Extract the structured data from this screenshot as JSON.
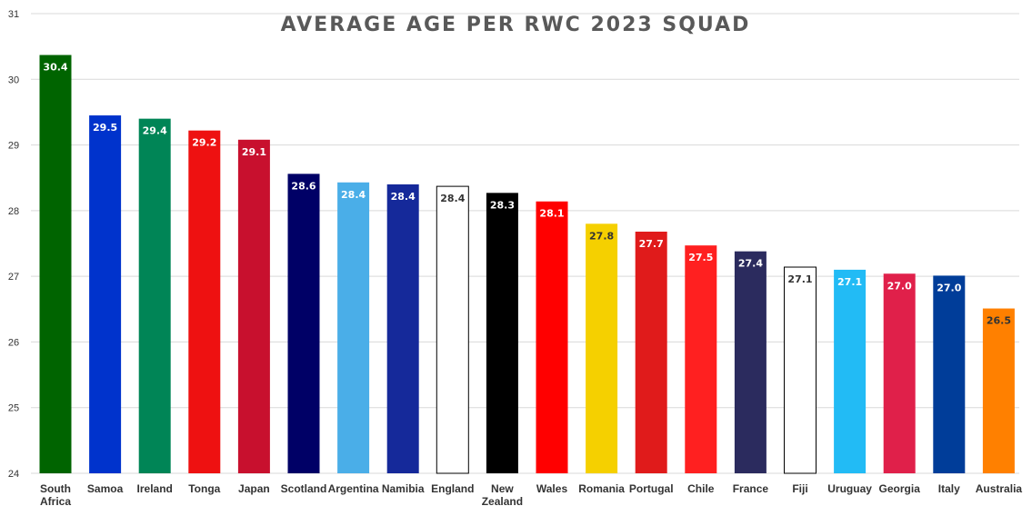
{
  "chart_data": {
    "type": "bar",
    "title": "AVERAGE AGE PER RWC 2023 SQUAD",
    "xlabel": "",
    "ylabel": "",
    "ylim": [
      24,
      31
    ],
    "yticks": [
      "24",
      "25",
      "26",
      "27",
      "28",
      "29",
      "30",
      "31"
    ],
    "grid": true,
    "categories": [
      [
        "South",
        "Africa"
      ],
      [
        "Samoa"
      ],
      [
        "Ireland"
      ],
      [
        "Tonga"
      ],
      [
        "Japan"
      ],
      [
        "Scotland"
      ],
      [
        "Argentina"
      ],
      [
        "Namibia"
      ],
      [
        "England"
      ],
      [
        "New",
        "Zealand"
      ],
      [
        "Wales"
      ],
      [
        "Romania"
      ],
      [
        "Portugal"
      ],
      [
        "Chile"
      ],
      [
        "France"
      ],
      [
        "Fiji"
      ],
      [
        "Uruguay"
      ],
      [
        "Georgia"
      ],
      [
        "Italy"
      ],
      [
        "Australia"
      ]
    ],
    "values": [
      30.37,
      29.45,
      29.4,
      29.22,
      29.08,
      28.56,
      28.43,
      28.4,
      28.37,
      28.27,
      28.14,
      27.8,
      27.68,
      27.47,
      27.38,
      27.14,
      27.1,
      27.04,
      27.01,
      26.51
    ],
    "data_labels": [
      "30.4",
      "29.5",
      "29.4",
      "29.2",
      "29.1",
      "28.6",
      "28.4",
      "28.4",
      "28.4",
      "28.3",
      "28.1",
      "27.8",
      "27.7",
      "27.5",
      "27.4",
      "27.1",
      "27.1",
      "27.0",
      "27.0",
      "26.5"
    ],
    "colors": [
      "#006400",
      "#0033cc",
      "#008556",
      "#ee1111",
      "#c8102e",
      "#000066",
      "#4aaee8",
      "#15299a",
      "#ffffff",
      "#000000",
      "#ff0000",
      "#f5d000",
      "#e01b1b",
      "#ff2020",
      "#2b2b5e",
      "#ffffff",
      "#22bbf5",
      "#e0204a",
      "#003d99",
      "#ff8000"
    ],
    "label_colors": [
      "#ffffff",
      "#ffffff",
      "#ffffff",
      "#ffffff",
      "#ffffff",
      "#ffffff",
      "#ffffff",
      "#ffffff",
      "#333333",
      "#ffffff",
      "#ffffff",
      "#333333",
      "#ffffff",
      "#ffffff",
      "#ffffff",
      "#333333",
      "#ffffff",
      "#ffffff",
      "#ffffff",
      "#333333"
    ]
  }
}
